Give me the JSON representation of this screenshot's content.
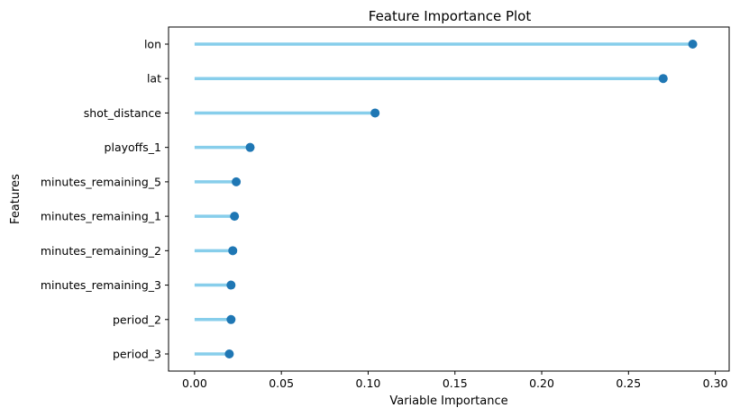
{
  "chart_data": {
    "type": "lollipop",
    "title": "Feature Importance Plot",
    "xlabel": "Variable Importance",
    "ylabel": "Features",
    "xlim": [
      -0.015,
      0.308
    ],
    "xticks": [
      0.0,
      0.05,
      0.1,
      0.15,
      0.2,
      0.25,
      0.3
    ],
    "xtick_labels": [
      "0.00",
      "0.05",
      "0.10",
      "0.15",
      "0.20",
      "0.25",
      "0.30"
    ],
    "grid": false,
    "categories": [
      "lon",
      "lat",
      "shot_distance",
      "playoffs_1",
      "minutes_remaining_5",
      "minutes_remaining_1",
      "minutes_remaining_2",
      "minutes_remaining_3",
      "period_2",
      "period_3"
    ],
    "values": [
      0.287,
      0.27,
      0.104,
      0.032,
      0.024,
      0.023,
      0.022,
      0.021,
      0.021,
      0.02
    ],
    "colors": {
      "stem": "#87ceeb",
      "marker": "#1f77b4",
      "axis": "#000000"
    }
  }
}
